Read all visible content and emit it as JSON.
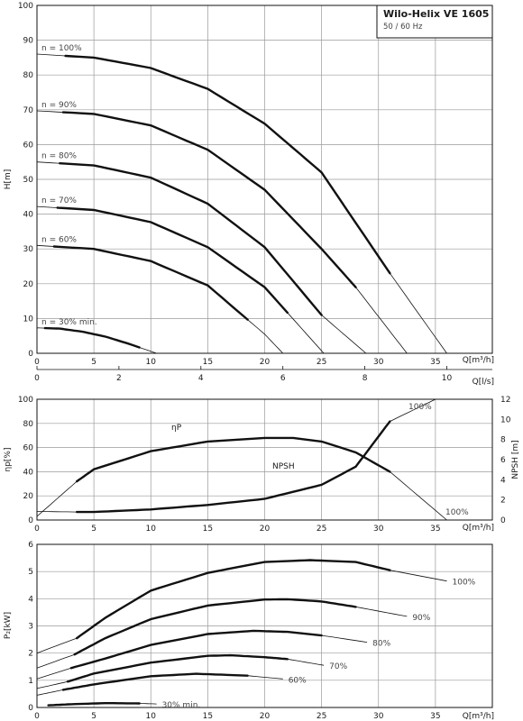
{
  "title_box": {
    "title": "Wilo-Helix VE 1605",
    "subtitle": "50 / 60 Hz"
  },
  "chart_data": [
    {
      "type": "line",
      "id": "head",
      "ylabel": "H[m]",
      "xlabel": "Q[m³/h]",
      "xlabel2": "Q[l/s]",
      "xlim": [
        0,
        40
      ],
      "ylim": [
        0,
        100
      ],
      "xticks": [
        0,
        5,
        10,
        15,
        20,
        25,
        30,
        35
      ],
      "yticks": [
        0,
        10,
        20,
        30,
        40,
        50,
        60,
        70,
        80,
        90,
        100
      ],
      "x2ticks": [
        0,
        2,
        4,
        6,
        8,
        10
      ],
      "series": [
        {
          "name": "n = 100%",
          "x": [
            0,
            5,
            10,
            15,
            20,
            25,
            31,
            36
          ],
          "y": [
            86,
            85,
            82,
            76,
            66,
            52,
            23,
            0
          ],
          "bold_range": [
            2.5,
            31
          ]
        },
        {
          "name": "n = 90%",
          "x": [
            0,
            5,
            10,
            15,
            20,
            25,
            28,
            32.5
          ],
          "y": [
            69.7,
            68.8,
            65.5,
            58.5,
            47,
            30,
            19,
            0
          ],
          "bold_range": [
            2.3,
            28
          ]
        },
        {
          "name": "n = 80%",
          "x": [
            0,
            5,
            10,
            15,
            20,
            25,
            28.9
          ],
          "y": [
            55,
            54,
            50.5,
            43,
            30.5,
            11,
            0
          ],
          "bold_range": [
            2,
            25
          ]
        },
        {
          "name": "n = 70%",
          "x": [
            0,
            5,
            10,
            15,
            20,
            25.2
          ],
          "y": [
            42.2,
            41.2,
            37.7,
            30.5,
            19,
            0
          ],
          "bold_range": [
            1.8,
            22
          ]
        },
        {
          "name": "n = 60%",
          "x": [
            0,
            5,
            10,
            15,
            20,
            21.6
          ],
          "y": [
            31,
            30,
            26.5,
            19.5,
            5.5,
            0
          ],
          "bold_range": [
            1.5,
            18.5
          ]
        },
        {
          "name": "n = 30% min.",
          "x": [
            0,
            2,
            4,
            6,
            8,
            10.5
          ],
          "y": [
            7.3,
            7.1,
            6.2,
            4.8,
            2.8,
            0
          ],
          "bold_range": [
            0.7,
            9
          ]
        }
      ]
    },
    {
      "type": "line",
      "id": "efficiency",
      "ylabel": "ηp[%]",
      "ylabel_right": "NPSH [m]",
      "xlabel": "Q[m³/h]",
      "xlim": [
        0,
        40
      ],
      "ylim": [
        0,
        100
      ],
      "ylim_right": [
        0,
        12
      ],
      "xticks": [
        0,
        5,
        10,
        15,
        20,
        25,
        30,
        35
      ],
      "yticks": [
        0,
        20,
        40,
        60,
        80,
        100
      ],
      "yticks_right": [
        0,
        2,
        4,
        6,
        8,
        10,
        12
      ],
      "series": [
        {
          "name": "ηP",
          "axis": "left",
          "x": [
            0,
            3.5,
            5,
            10,
            15,
            20,
            22.5,
            25,
            28,
            31,
            36
          ],
          "y": [
            3,
            32,
            42,
            57,
            65,
            68,
            68,
            65,
            56,
            40,
            0
          ],
          "bold_range": [
            3.5,
            31
          ]
        },
        {
          "name": "NPSH",
          "axis": "right",
          "x": [
            0,
            3.5,
            5,
            10,
            15,
            20,
            25,
            28,
            31,
            35
          ],
          "y": [
            0.85,
            0.8,
            0.8,
            1.05,
            1.5,
            2.1,
            3.5,
            5.3,
            9.8,
            12
          ],
          "bold_range": [
            3.5,
            31
          ]
        }
      ],
      "annotations": [
        "100%",
        "100%"
      ]
    },
    {
      "type": "line",
      "id": "power",
      "ylabel": "P₂[kW]",
      "xlabel": "Q[m³/h]",
      "xlim": [
        0,
        40
      ],
      "ylim": [
        0,
        6
      ],
      "xticks": [
        0,
        5,
        10,
        15,
        20,
        25,
        30,
        35
      ],
      "yticks": [
        0,
        1,
        2,
        3,
        4,
        5,
        6
      ],
      "series": [
        {
          "name": "100%",
          "x": [
            0,
            3.5,
            6,
            10,
            15,
            20,
            24,
            28,
            31,
            36
          ],
          "y": [
            2,
            2.55,
            3.3,
            4.3,
            4.95,
            5.35,
            5.42,
            5.35,
            5.05,
            4.65
          ],
          "bold_range": [
            3.5,
            31
          ]
        },
        {
          "name": "90%",
          "x": [
            0,
            3.3,
            6,
            10,
            15,
            20,
            22,
            25,
            28,
            32.5
          ],
          "y": [
            1.45,
            1.95,
            2.55,
            3.25,
            3.75,
            3.97,
            3.98,
            3.9,
            3.7,
            3.35
          ],
          "bold_range": [
            3.3,
            28
          ]
        },
        {
          "name": "80%",
          "x": [
            0,
            3,
            6,
            10,
            15,
            19,
            22,
            25,
            29
          ],
          "y": [
            1.05,
            1.45,
            1.8,
            2.3,
            2.7,
            2.82,
            2.78,
            2.65,
            2.4
          ],
          "bold_range": [
            3,
            25
          ]
        },
        {
          "name": "70%",
          "x": [
            0,
            2.7,
            5,
            10,
            15,
            17,
            20,
            22,
            25.2
          ],
          "y": [
            0.7,
            0.95,
            1.25,
            1.65,
            1.9,
            1.92,
            1.85,
            1.78,
            1.55
          ],
          "bold_range": [
            2.7,
            22
          ]
        },
        {
          "name": "60%",
          "x": [
            0,
            2.3,
            5,
            10,
            14,
            18.5,
            21.6
          ],
          "y": [
            0.45,
            0.65,
            0.85,
            1.15,
            1.24,
            1.17,
            1.05
          ],
          "bold_range": [
            2.3,
            18.5
          ]
        },
        {
          "name": "30% min.",
          "x": [
            1,
            3,
            6,
            9,
            10.5
          ],
          "y": [
            0.08,
            0.12,
            0.16,
            0.15,
            0.13
          ],
          "bold_range": [
            1,
            9
          ]
        }
      ]
    }
  ]
}
